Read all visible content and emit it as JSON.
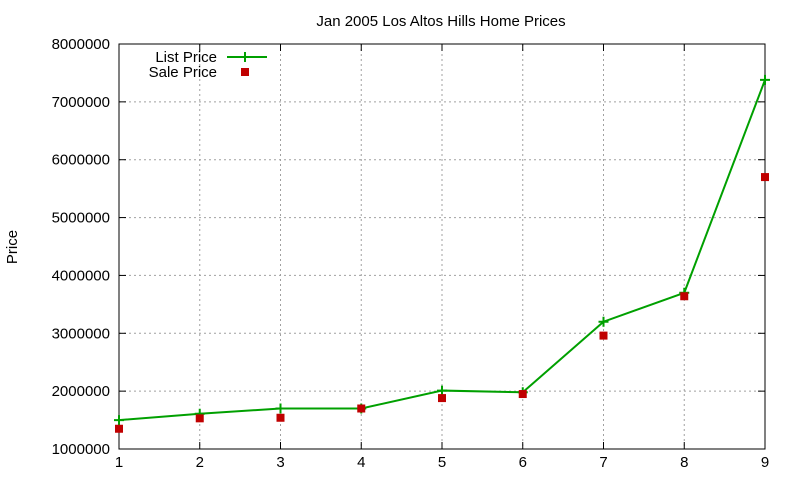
{
  "chart_data": {
    "type": "line",
    "title": "Jan 2005 Los Altos Hills Home Prices",
    "xlabel": "",
    "ylabel": "Price",
    "xlim": [
      1,
      9
    ],
    "ylim": [
      1000000,
      8000000
    ],
    "x_ticks": [
      "1",
      "2",
      "3",
      "4",
      "5",
      "6",
      "7",
      "8",
      "9"
    ],
    "y_ticks": [
      "1000000",
      "2000000",
      "3000000",
      "4000000",
      "5000000",
      "6000000",
      "7000000",
      "8000000"
    ],
    "grid": true,
    "legend_position": "top-left",
    "series": [
      {
        "name": "List Price",
        "style": "linespoints",
        "color": "#00a000",
        "x": [
          1,
          2,
          3,
          4,
          5,
          6,
          7,
          8,
          9
        ],
        "values": [
          1500000,
          1610000,
          1700000,
          1700000,
          2010000,
          1980000,
          3200000,
          3700000,
          7380000
        ]
      },
      {
        "name": "Sale Price",
        "style": "points",
        "color": "#c00000",
        "x": [
          1,
          2,
          3,
          4,
          5,
          6,
          7,
          8,
          9
        ],
        "values": [
          1350000,
          1530000,
          1540000,
          1700000,
          1880000,
          1950000,
          2960000,
          3640000,
          5700000
        ]
      }
    ]
  }
}
